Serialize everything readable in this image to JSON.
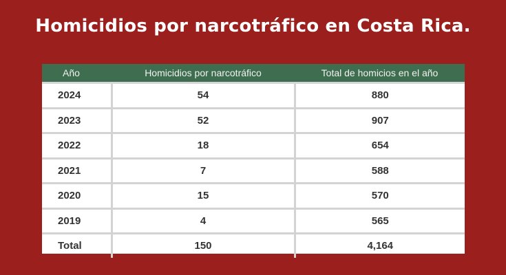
{
  "title": "Homicidios por narcotráfico en Costa Rica.",
  "chart_data": {
    "type": "table",
    "title": "Homicidios por narcotráfico en Costa Rica.",
    "columns": [
      "Año",
      "Homicidios por narcotráfico",
      "Total de homicios en el año"
    ],
    "rows": [
      [
        "2024",
        "54",
        "880"
      ],
      [
        "2023",
        "52",
        "907"
      ],
      [
        "2022",
        "18",
        "654"
      ],
      [
        "2021",
        "7",
        "588"
      ],
      [
        "2020",
        "15",
        "570"
      ],
      [
        "2019",
        "4",
        "565"
      ],
      [
        "Total",
        "150",
        "4,164"
      ]
    ]
  },
  "colors": {
    "background": "#9b1f1c",
    "header": "#3e6d4f"
  }
}
